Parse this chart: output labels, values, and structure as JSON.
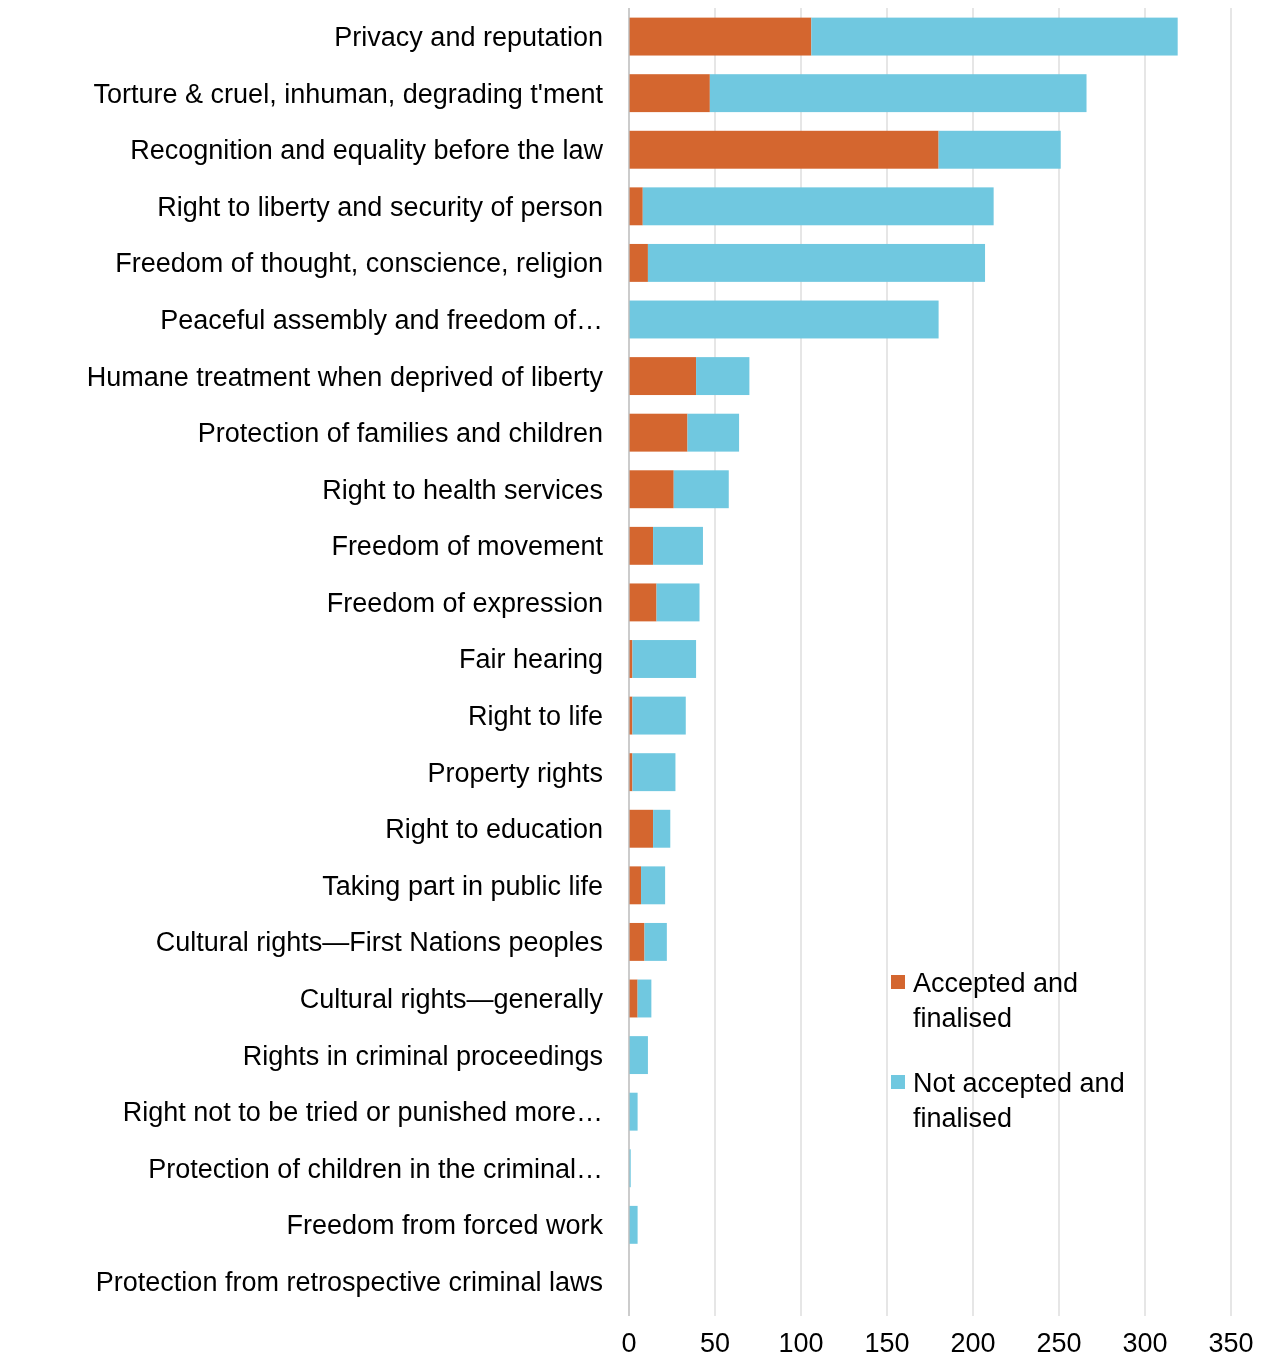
{
  "chart_data": {
    "type": "bar",
    "orientation": "horizontal",
    "stacked": true,
    "categories": [
      "Privacy and reputation",
      "Torture & cruel, inhuman, degrading t'ment",
      "Recognition and equality before the law",
      "Right to liberty and security of person",
      "Freedom of thought, conscience, religion",
      "Peaceful assembly and freedom of…",
      "Humane treatment when deprived of liberty",
      "Protection of families and children",
      "Right to health services",
      "Freedom of movement",
      "Freedom of expression",
      "Fair hearing",
      "Right to life",
      "Property rights",
      "Right to education",
      "Taking part in public life",
      "Cultural rights—First Nations peoples",
      "Cultural rights—generally",
      "Rights in criminal proceedings",
      "Right not to be tried or punished more…",
      "Protection of children in the criminal…",
      "Freedom from forced work",
      "Protection from retrospective criminal laws"
    ],
    "series": [
      {
        "name": "Accepted and finalised",
        "color": "#d4662f",
        "values": [
          106,
          47,
          180,
          8,
          11,
          0,
          39,
          34,
          26,
          14,
          16,
          2,
          2,
          2,
          14,
          7,
          9,
          5,
          0,
          0,
          0,
          0,
          0
        ]
      },
      {
        "name": "Not accepted and finalised",
        "color": "#70c8e0",
        "values": [
          213,
          219,
          71,
          204,
          196,
          180,
          31,
          30,
          32,
          29,
          25,
          37,
          31,
          25,
          10,
          14,
          13,
          8,
          11,
          5,
          1,
          5,
          0
        ]
      }
    ],
    "xlim": [
      0,
      350
    ],
    "xticks": [
      0,
      50,
      100,
      150,
      200,
      250,
      300,
      350
    ],
    "grid": "x",
    "legend": "bottom right"
  }
}
